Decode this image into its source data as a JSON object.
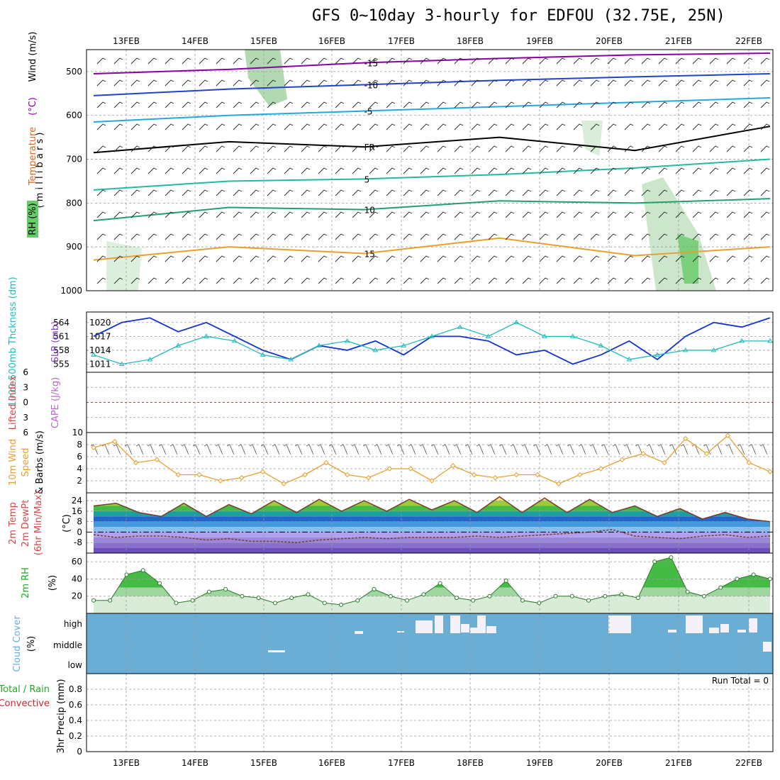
{
  "title": "GFS 0~10day 3-hourly for EDFOU (32.75E, 25N)",
  "dates": [
    "13FEB",
    "14FEB",
    "15FEB",
    "16FEB",
    "17FEB",
    "18FEB",
    "19FEB",
    "20FEB",
    "21FEB",
    "22FEB"
  ],
  "colors": {
    "grid": "#999999",
    "rh": "#66cc66",
    "temp_purple": "#8800aa",
    "temp_blue": "#2244cc",
    "temp_cyan": "#22aadd",
    "temp_teal": "#22bba0",
    "temp_orange": "#e8a030",
    "slp": "#1133cc",
    "thick": "#22bbbb",
    "wind10": "#e8a030",
    "cloud": "#6aaed6",
    "precip_rain": "#22aa22",
    "precip_conv": "#dd2222"
  },
  "chart_data": [
    {
      "type": "contour",
      "name": "upper-air",
      "ylabel_parts": [
        "RH (%)",
        "Temperature",
        "(°C)",
        "Wind (m/s)"
      ],
      "ylabel_sub": "( m i l l i b a r s )",
      "yticks": [
        500,
        600,
        700,
        800,
        900,
        1000
      ],
      "ylim": [
        450,
        1000
      ],
      "contours": [
        {
          "label": "-15",
          "color": "#8800aa",
          "p": [
            505,
            495,
            480,
            470,
            462,
            458
          ]
        },
        {
          "label": "-10",
          "color": "#2244cc",
          "p": [
            555,
            540,
            530,
            520,
            512,
            505
          ]
        },
        {
          "label": "-5",
          "color": "#22aadd",
          "p": [
            615,
            600,
            590,
            580,
            570,
            560
          ]
        },
        {
          "label": "FR",
          "color": "#000000",
          "p": [
            685,
            660,
            672,
            650,
            680,
            625
          ]
        },
        {
          "label": "5",
          "color": "#22bba0",
          "p": [
            770,
            750,
            745,
            735,
            720,
            700
          ]
        },
        {
          "label": "10",
          "color": "#22a070",
          "p": [
            840,
            810,
            815,
            795,
            800,
            790
          ]
        },
        {
          "label": "15",
          "color": "#e8a030",
          "p": [
            930,
            900,
            915,
            880,
            920,
            900
          ]
        }
      ]
    },
    {
      "type": "line",
      "name": "slp-thickness",
      "ylabel_left": "1000-500mb Thckness (dm)",
      "ylabel_right": "SLP (mb)",
      "yticks_left": [
        564,
        561,
        558,
        555
      ],
      "yticks_right": [
        1020,
        1017,
        1014,
        1011
      ],
      "series": [
        {
          "name": "SLP",
          "values": [
            1017,
            1020,
            1021,
            1018,
            1020,
            1017,
            1014,
            1012,
            1015,
            1014,
            1016,
            1013,
            1017,
            1017,
            1016,
            1013,
            1014,
            1011,
            1013,
            1016,
            1012,
            1017,
            1020,
            1019,
            1021
          ]
        },
        {
          "name": "Thickness",
          "values": [
            557,
            555,
            556,
            559,
            561,
            560,
            557,
            556,
            559,
            560,
            558,
            559,
            561,
            563,
            561,
            564,
            561,
            561,
            559,
            556,
            557,
            558,
            558,
            560,
            560
          ]
        }
      ]
    },
    {
      "type": "line",
      "name": "lifted-index",
      "ylabel_left": "Lifted Index",
      "ylabel_right": "CAPE (J/kg)",
      "yticks": [
        -6,
        -3,
        0,
        3,
        6
      ],
      "ylim": [
        -6,
        6
      ],
      "series": [
        {
          "name": "LI",
          "values": []
        }
      ]
    },
    {
      "type": "line",
      "name": "wind10m",
      "ylabel": "10m Wind Speed & Barbs (m/s)",
      "yticks": [
        2,
        4,
        6,
        8,
        10
      ],
      "ylim": [
        0,
        10
      ],
      "series": [
        {
          "name": "Speed",
          "values": [
            7.5,
            8.5,
            5,
            5.5,
            3,
            3,
            2,
            2.5,
            3.5,
            1.5,
            3,
            5,
            3,
            2.5,
            4,
            4,
            2,
            4.5,
            3,
            2.5,
            3,
            3,
            1.5,
            3,
            4,
            5.5,
            6.5,
            5,
            9,
            6.5,
            9.5,
            5,
            3.5
          ]
        }
      ]
    },
    {
      "type": "area",
      "name": "temp2m",
      "ylabel": "2m Temp 2m DewPt (6hr Min/Max) (°C)",
      "yticks": [
        24,
        16,
        8,
        0,
        -8
      ],
      "ylim": [
        -16,
        30
      ],
      "series": [
        {
          "name": "Temp",
          "values": [
            20,
            22,
            15,
            12,
            22,
            12,
            21,
            14,
            24,
            15,
            25,
            16,
            24,
            16,
            25,
            17,
            24,
            15,
            27,
            15,
            26,
            15,
            25,
            15,
            20,
            12,
            18,
            10,
            15,
            10,
            8
          ]
        },
        {
          "name": "DewPt",
          "values": [
            -2,
            -4,
            -3,
            -3,
            -4,
            -6,
            -5,
            -7,
            -7,
            -8,
            -6,
            -5,
            -4,
            -5,
            -4,
            -4,
            -4,
            -3,
            -4,
            -3,
            -2,
            -1,
            0,
            2,
            -3,
            -4,
            -5,
            -3,
            -2,
            -4,
            -3
          ]
        }
      ]
    },
    {
      "type": "area",
      "name": "rh2m",
      "ylabel": "2m RH (%)",
      "yticks": [
        20,
        40,
        60
      ],
      "ylim": [
        0,
        70
      ],
      "series": [
        {
          "name": "RH",
          "values": [
            15,
            15,
            45,
            50,
            35,
            12,
            15,
            25,
            28,
            20,
            18,
            12,
            18,
            22,
            12,
            10,
            15,
            28,
            20,
            15,
            22,
            35,
            18,
            15,
            20,
            38,
            15,
            12,
            20,
            20,
            15,
            20,
            22,
            18,
            60,
            65,
            25,
            20,
            30,
            40,
            45,
            40
          ]
        }
      ]
    },
    {
      "type": "area",
      "name": "cloud",
      "ylabel": "Cloud Cover (%)",
      "yticks_text": [
        "high",
        "middle",
        "low"
      ]
    },
    {
      "type": "bar",
      "name": "precip",
      "ylabel_parts": [
        "Total / Rain",
        "Convective",
        "3hr Precip (mm)"
      ],
      "yticks": [
        0,
        0.2,
        0.4,
        0.6,
        0.8
      ],
      "ylim": [
        0,
        1
      ],
      "annotation": "Run Total = 0",
      "series": [
        {
          "name": "Precip",
          "values": []
        }
      ]
    }
  ]
}
